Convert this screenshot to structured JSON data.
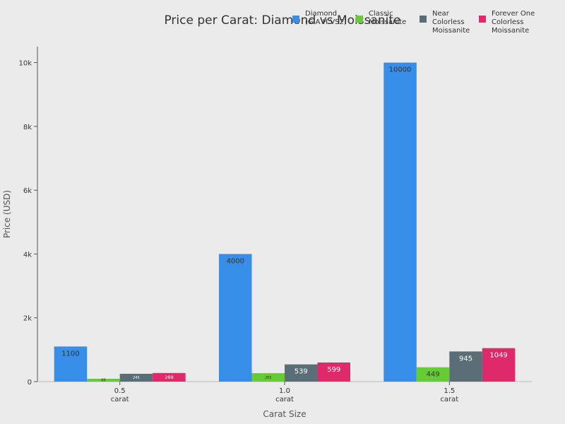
{
  "chart_data": {
    "type": "bar",
    "title": "Price per Carat: Diamond vs Moissanite",
    "xlabel": "Carat Size",
    "ylabel": "Price (USD)",
    "categories": [
      "0.5\ncarat",
      "1.0\ncarat",
      "1.5\ncarat"
    ],
    "ylim": [
      0,
      10500
    ],
    "yticks": [
      0,
      2000,
      4000,
      6000,
      8000,
      10000
    ],
    "ytick_labels": [
      "0",
      "2k",
      "4k",
      "6k",
      "8k",
      "10k"
    ],
    "grid": false,
    "legend": "top-right",
    "series": [
      {
        "name": "Diamond\n(GIA H VS2)",
        "color": "#368ee8",
        "label_color": "#333333",
        "values": [
          1100,
          4000,
          10000
        ]
      },
      {
        "name": "Classic\nMoissanite",
        "color": "#66cc33",
        "label_color": "#333333",
        "values": [
          89,
          265,
          449
        ]
      },
      {
        "name": "Near\nColorless\nMoissanite",
        "color": "#5a6e77",
        "label_color": "#ffffff",
        "values": [
          245,
          539,
          945
        ]
      },
      {
        "name": "Forever One\nColorless\nMoissanite",
        "color": "#e0296b",
        "label_color": "#ffffff",
        "values": [
          269,
          599,
          1049
        ]
      }
    ]
  }
}
